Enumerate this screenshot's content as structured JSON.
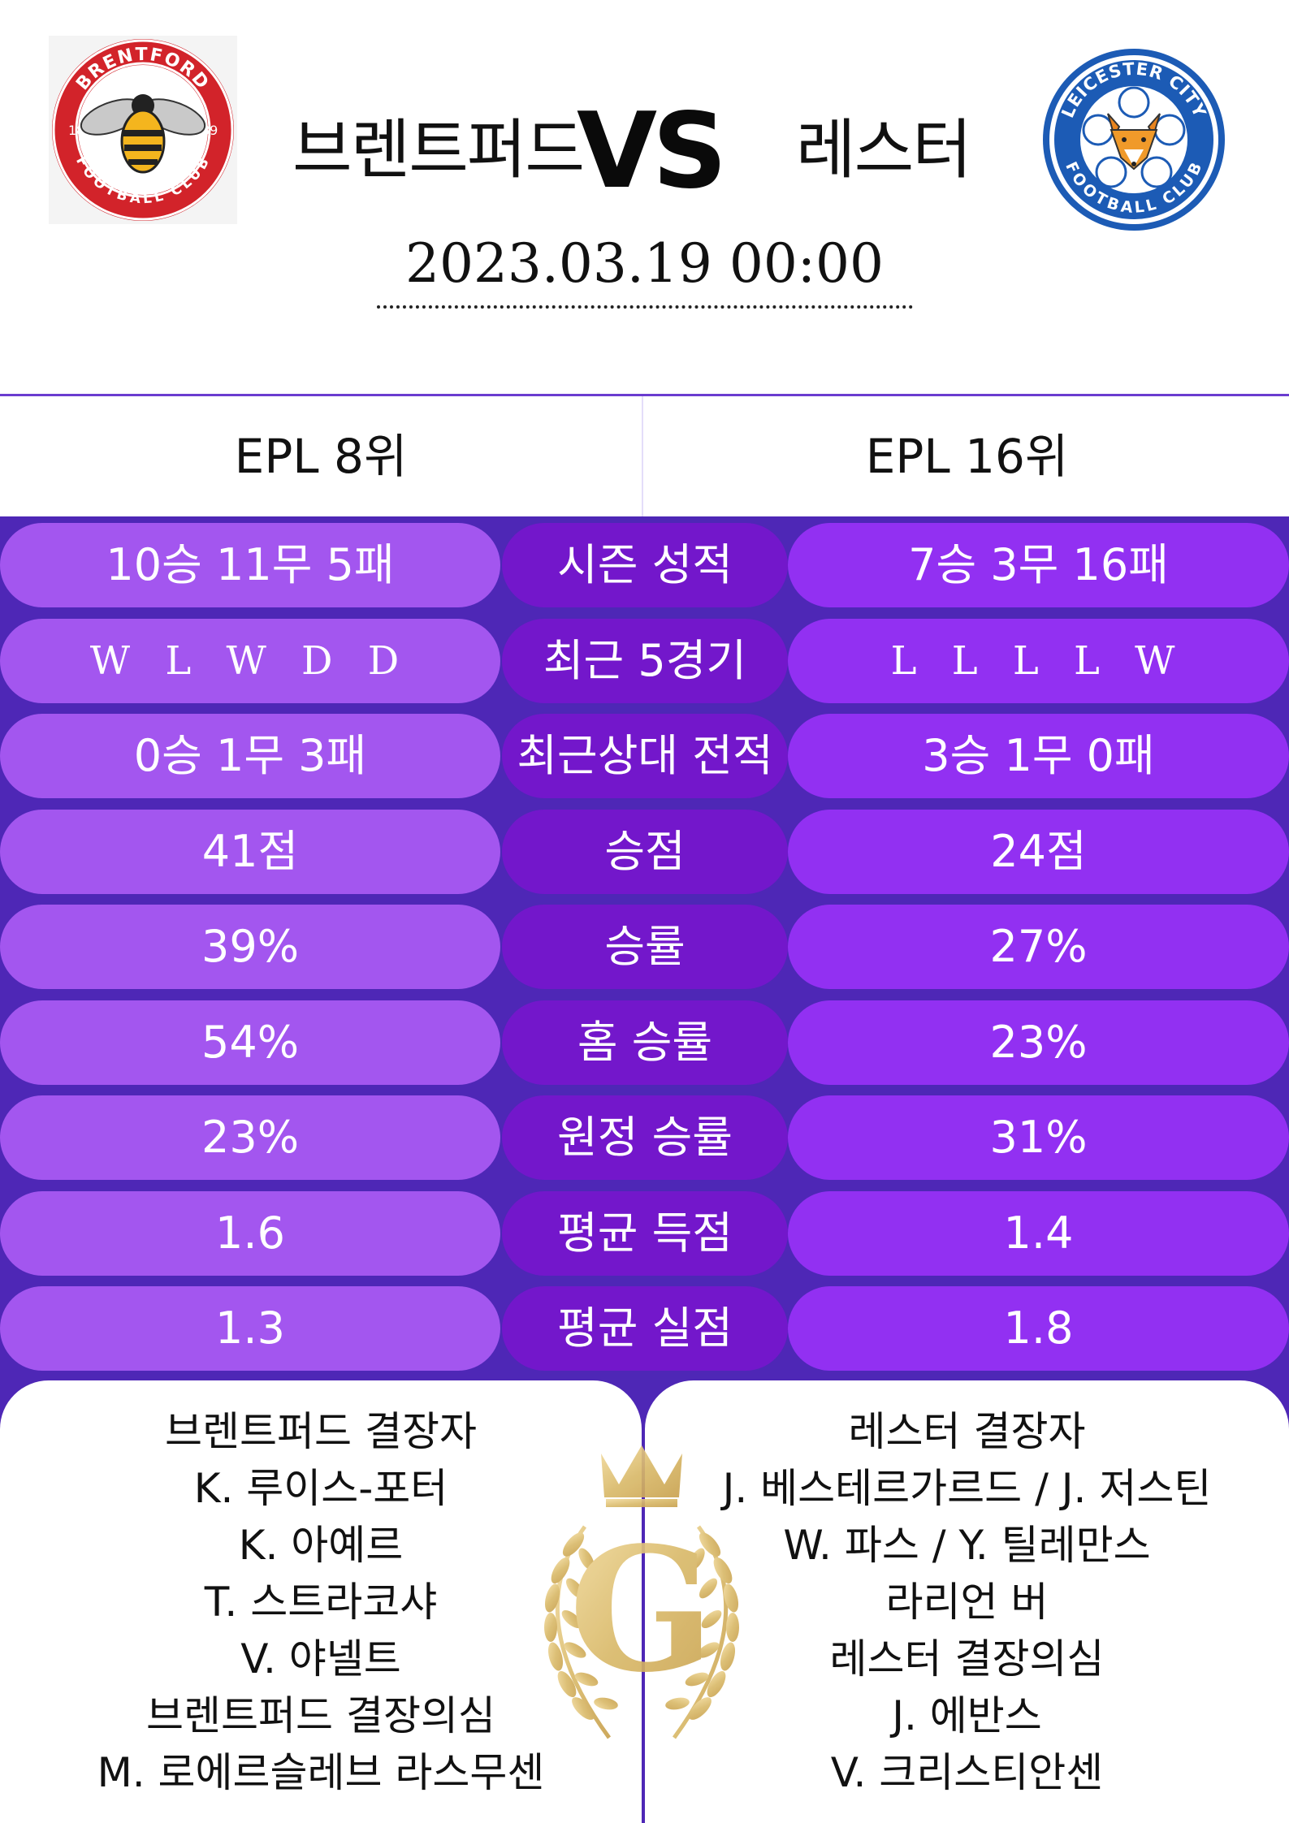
{
  "header": {
    "home_team": "브렌트퍼드",
    "vs": "VS",
    "away_team": "레스터",
    "datetime": "2023.03.19  00:00",
    "home_logo": {
      "icon": "brentford-fc-crest",
      "text_top": "BRENTFORD",
      "text_bottom": "FOOTBALL CLUB",
      "year_left": "18",
      "year_right": "89",
      "color": "#d2232a"
    },
    "away_logo": {
      "icon": "leicester-city-fc-crest",
      "text_top": "LEICESTER CITY",
      "text_bottom": "FOOTBALL CLUB",
      "color": "#1c5bb5"
    }
  },
  "ranks": {
    "home": "EPL 8위",
    "away": "EPL 16위"
  },
  "stats": [
    {
      "label": "시즌 성적",
      "home": "10승 11무 5패",
      "away": "7승 3무 16패"
    },
    {
      "label": "최근 5경기",
      "home": "W L W D D",
      "away": "L L L L W"
    },
    {
      "label": "최근상대 전적",
      "home": "0승 1무 3패",
      "away": "3승 1무 0패"
    },
    {
      "label": "승점",
      "home": "41점",
      "away": "24점"
    },
    {
      "label": "승률",
      "home": "39%",
      "away": "27%"
    },
    {
      "label": "홈 승률",
      "home": "54%",
      "away": "23%"
    },
    {
      "label": "원정 승률",
      "home": "23%",
      "away": "31%"
    },
    {
      "label": "평균 득점",
      "home": "1.6",
      "away": "1.4"
    },
    {
      "label": "평균 실점",
      "home": "1.3",
      "away": "1.8"
    }
  ],
  "absences": {
    "home": [
      "브렌트퍼드 결장자",
      "K. 루이스-포터",
      "K. 아예르",
      "T. 스트라코샤",
      "V. 야넬트",
      "브렌트퍼드 결장의심",
      "M. 로에르슬레브 라스무센"
    ],
    "away": [
      "레스터 결장자",
      "J. 베스테르가르드 / J. 저스틴",
      "W. 파스 / Y. 틸레만스",
      "라리언 버",
      "레스터 결장의심",
      "J. 에반스",
      "V. 크리스티안센"
    ]
  },
  "watermark": {
    "icon": "crown-laurel-g-emblem",
    "letter": "G",
    "color": "#d9b968"
  },
  "colors": {
    "background": "#4e27b6",
    "home_pill": "#a356ef",
    "label_pill": "#7317cb",
    "away_pill": "#9230f2"
  }
}
